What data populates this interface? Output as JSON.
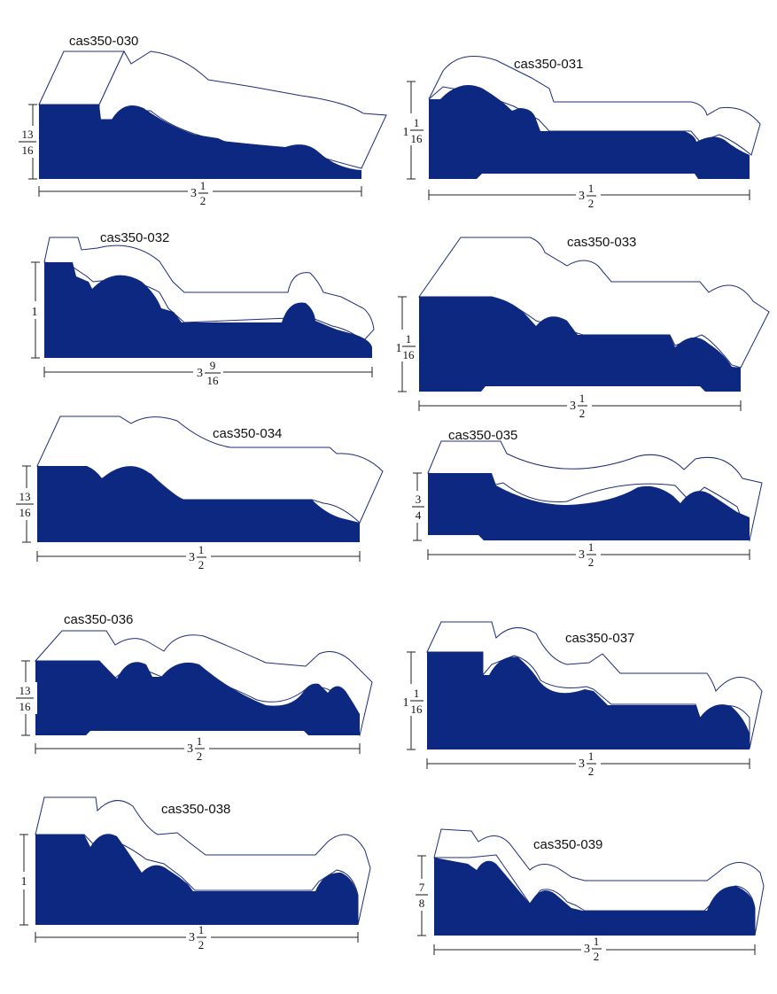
{
  "profiles": [
    {
      "code": "cas350-030",
      "height": {
        "whole": "",
        "num": "13",
        "den": "16"
      },
      "width": {
        "whole": "3",
        "num": "1",
        "den": "2"
      }
    },
    {
      "code": "cas350-031",
      "height": {
        "whole": "1",
        "num": "1",
        "den": "16"
      },
      "width": {
        "whole": "3",
        "num": "1",
        "den": "2"
      }
    },
    {
      "code": "cas350-032",
      "height": {
        "whole": "1",
        "num": "",
        "den": ""
      },
      "width": {
        "whole": "3",
        "num": "9",
        "den": "16"
      }
    },
    {
      "code": "cas350-033",
      "height": {
        "whole": "1",
        "num": "1",
        "den": "16"
      },
      "width": {
        "whole": "3",
        "num": "1",
        "den": "2"
      }
    },
    {
      "code": "cas350-034",
      "height": {
        "whole": "",
        "num": "13",
        "den": "16"
      },
      "width": {
        "whole": "3",
        "num": "1",
        "den": "2"
      }
    },
    {
      "code": "cas350-035",
      "height": {
        "whole": "",
        "num": "3",
        "den": "4"
      },
      "width": {
        "whole": "3",
        "num": "1",
        "den": "2"
      }
    },
    {
      "code": "cas350-036",
      "height": {
        "whole": "",
        "num": "13",
        "den": "16"
      },
      "width": {
        "whole": "3",
        "num": "1",
        "den": "2"
      }
    },
    {
      "code": "cas350-037",
      "height": {
        "whole": "1",
        "num": "1",
        "den": "16"
      },
      "width": {
        "whole": "3",
        "num": "1",
        "den": "2"
      }
    },
    {
      "code": "cas350-038",
      "height": {
        "whole": "1",
        "num": "",
        "den": ""
      },
      "width": {
        "whole": "3",
        "num": "1",
        "den": "2"
      }
    },
    {
      "code": "cas350-039",
      "height": {
        "whole": "",
        "num": "7",
        "den": "8"
      },
      "width": {
        "whole": "3",
        "num": "1",
        "den": "2"
      }
    }
  ],
  "colors": {
    "profile_fill": "#0c2880",
    "outline": "#1d2d7a"
  }
}
